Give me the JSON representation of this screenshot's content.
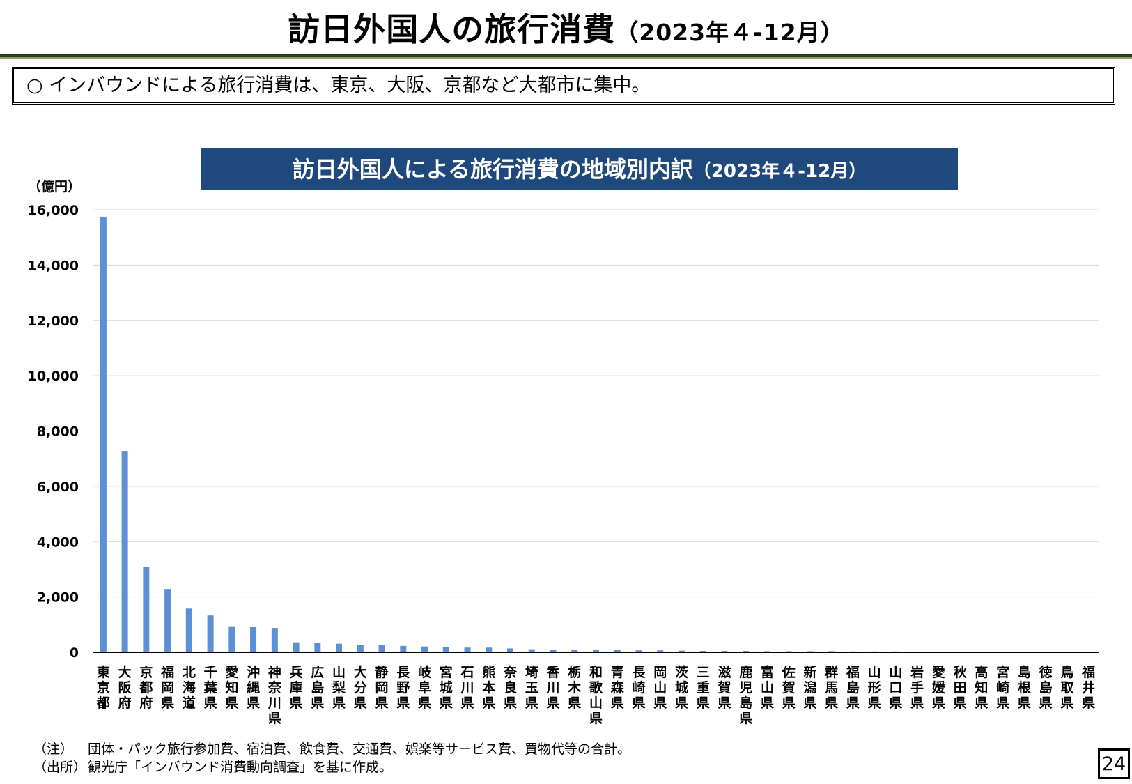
{
  "header": {
    "title": "訪日外国人の旅行消費",
    "period": "（2023年４-12月）"
  },
  "summary": "○  インバウンドによる旅行消費は、東京、大阪、京都など大都市に集中。",
  "chart_data": {
    "type": "bar",
    "title": "訪日外国人による旅行消費の地域別内訳",
    "title_period": "（2023年４-12月）",
    "ylabel": "（億円）",
    "ylim": [
      0,
      16000
    ],
    "yticks": [
      "0",
      "2,000",
      "4,000",
      "6,000",
      "8,000",
      "10,000",
      "12,000",
      "14,000",
      "16,000"
    ],
    "grid": true,
    "bar_color": "#5b8fd6",
    "categories": [
      "東京都",
      "大阪府",
      "京都府",
      "福岡県",
      "北海道",
      "千葉県",
      "愛知県",
      "沖縄県",
      "神奈川県",
      "兵庫県",
      "広島県",
      "山梨県",
      "大分県",
      "静岡県",
      "長野県",
      "岐阜県",
      "宮城県",
      "石川県",
      "熊本県",
      "奈良県",
      "埼玉県",
      "香川県",
      "栃木県",
      "和歌山県",
      "青森県",
      "長崎県",
      "岡山県",
      "茨城県",
      "三重県",
      "滋賀県",
      "鹿児島県",
      "富山県",
      "佐賀県",
      "新潟県",
      "群馬県",
      "福島県",
      "山形県",
      "山口県",
      "岩手県",
      "愛媛県",
      "秋田県",
      "高知県",
      "宮崎県",
      "島根県",
      "徳島県",
      "鳥取県",
      "福井県"
    ],
    "values": [
      15750,
      7280,
      3100,
      2290,
      1580,
      1330,
      940,
      920,
      880,
      360,
      330,
      310,
      270,
      260,
      230,
      210,
      180,
      170,
      170,
      140,
      110,
      100,
      90,
      90,
      80,
      70,
      70,
      60,
      50,
      50,
      50,
      40,
      40,
      40,
      40,
      30,
      30,
      30,
      20,
      20,
      15,
      15,
      15,
      10,
      10,
      10,
      10
    ]
  },
  "notes": {
    "note_label": "（注）",
    "note_text": "団体・パック旅行参加費、宿泊費、飲食費、交通費、娯楽等サービス費、買物代等の合計。",
    "source_label": "（出所）",
    "source_text": "観光庁「インバウンド消費動向調査」を基に作成。"
  },
  "page_number": "24"
}
